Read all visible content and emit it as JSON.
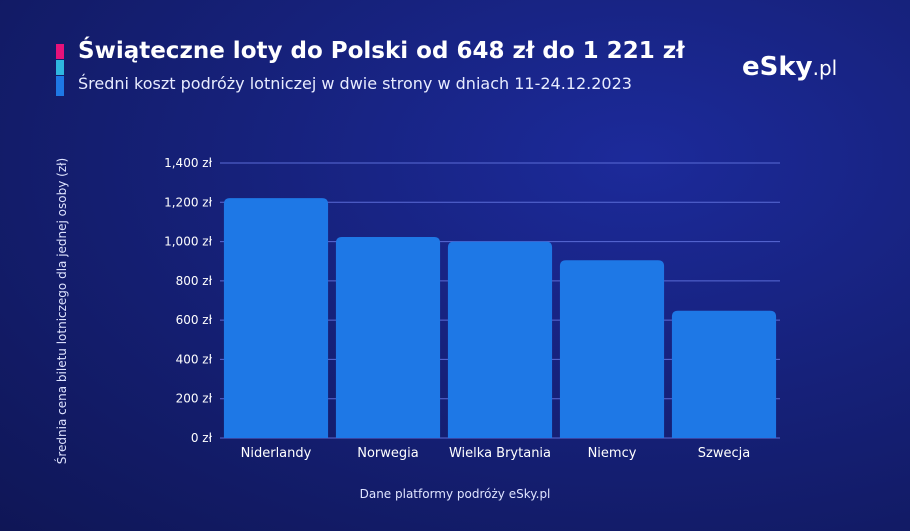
{
  "header": {
    "title": "Świąteczne loty do Polski od 648 zł do 1 221 zł",
    "subtitle": "Średni koszt podróży lotniczej w dwie strony w dniach 11-24.12.2023",
    "logo_main": "eSky",
    "logo_suffix": ".pl"
  },
  "footer": {
    "source": "Dane platformy podróży eSky.pl"
  },
  "colors": {
    "bar": "#1e78e6",
    "grid": "#5a6bd6",
    "accent_pink": "#e6127a",
    "accent_cyan": "#2fb7e0",
    "accent_blue": "#1e78e6"
  },
  "chart_data": {
    "type": "bar",
    "title": "Świąteczne loty do Polski od 648 zł do 1 221 zł",
    "subtitle": "Średni koszt podróży lotniczej w dwie strony w dniach 11-24.12.2023",
    "xlabel": "",
    "ylabel": "Średnia cena biletu lotniczego dla jednej osoby (zł)",
    "categories": [
      "Niderlandy",
      "Norwegia",
      "Wielka Brytania",
      "Niemcy",
      "Szwecja"
    ],
    "values": [
      1221,
      1023,
      1000,
      905,
      648
    ],
    "ylim": [
      0,
      1400
    ],
    "yticks": [
      0,
      200,
      400,
      600,
      800,
      1000,
      1200,
      1400
    ],
    "ytick_labels": [
      "0 zł",
      "200 zł",
      "400 zł",
      "600 zł",
      "800 zł",
      "1,000 zł",
      "1,200 zł",
      "1,400 zł"
    ],
    "grid": true,
    "legend": "none"
  }
}
